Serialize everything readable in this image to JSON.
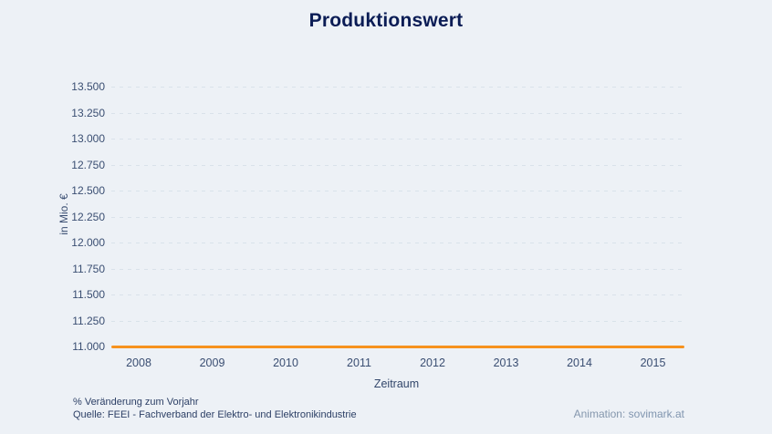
{
  "title": "Produktionswert",
  "chart_data": {
    "type": "line",
    "title": "Produktionswert",
    "x": [
      "2008",
      "2009",
      "2010",
      "2011",
      "2012",
      "2013",
      "2014",
      "2015"
    ],
    "series": [
      {
        "name": "Produktionswert",
        "values": [
          11000,
          11000,
          11000,
          11000,
          11000,
          11000,
          11000,
          11000
        ],
        "color": "#f6921e"
      }
    ],
    "xlabel": "Zeitraum",
    "ylabel": "in Mio. €",
    "ylim": [
      11000,
      13500
    ],
    "ytick_step": 250,
    "ytick_labels": [
      "13.500",
      "13.250",
      "13.000",
      "12.750",
      "12.500",
      "12.250",
      "12.000",
      "11.750",
      "11.500",
      "11.250",
      "11.000"
    ],
    "grid": "horizontal-dashed",
    "legend": "none"
  },
  "footer": {
    "note": "% Veränderung zum Vorjahr",
    "source": "Quelle: FEEI - Fachverband der Elektro- und Elektronikindustrie",
    "credit_label": "Animation: ",
    "credit_site": "sovimark.at"
  },
  "colors": {
    "background": "#edf1f6",
    "title_text": "#0a1c55",
    "axis_text": "#3a4e72",
    "gridline": "#d9e2ea",
    "series_line": "#f6921e",
    "credit_text": "#8597ad"
  }
}
